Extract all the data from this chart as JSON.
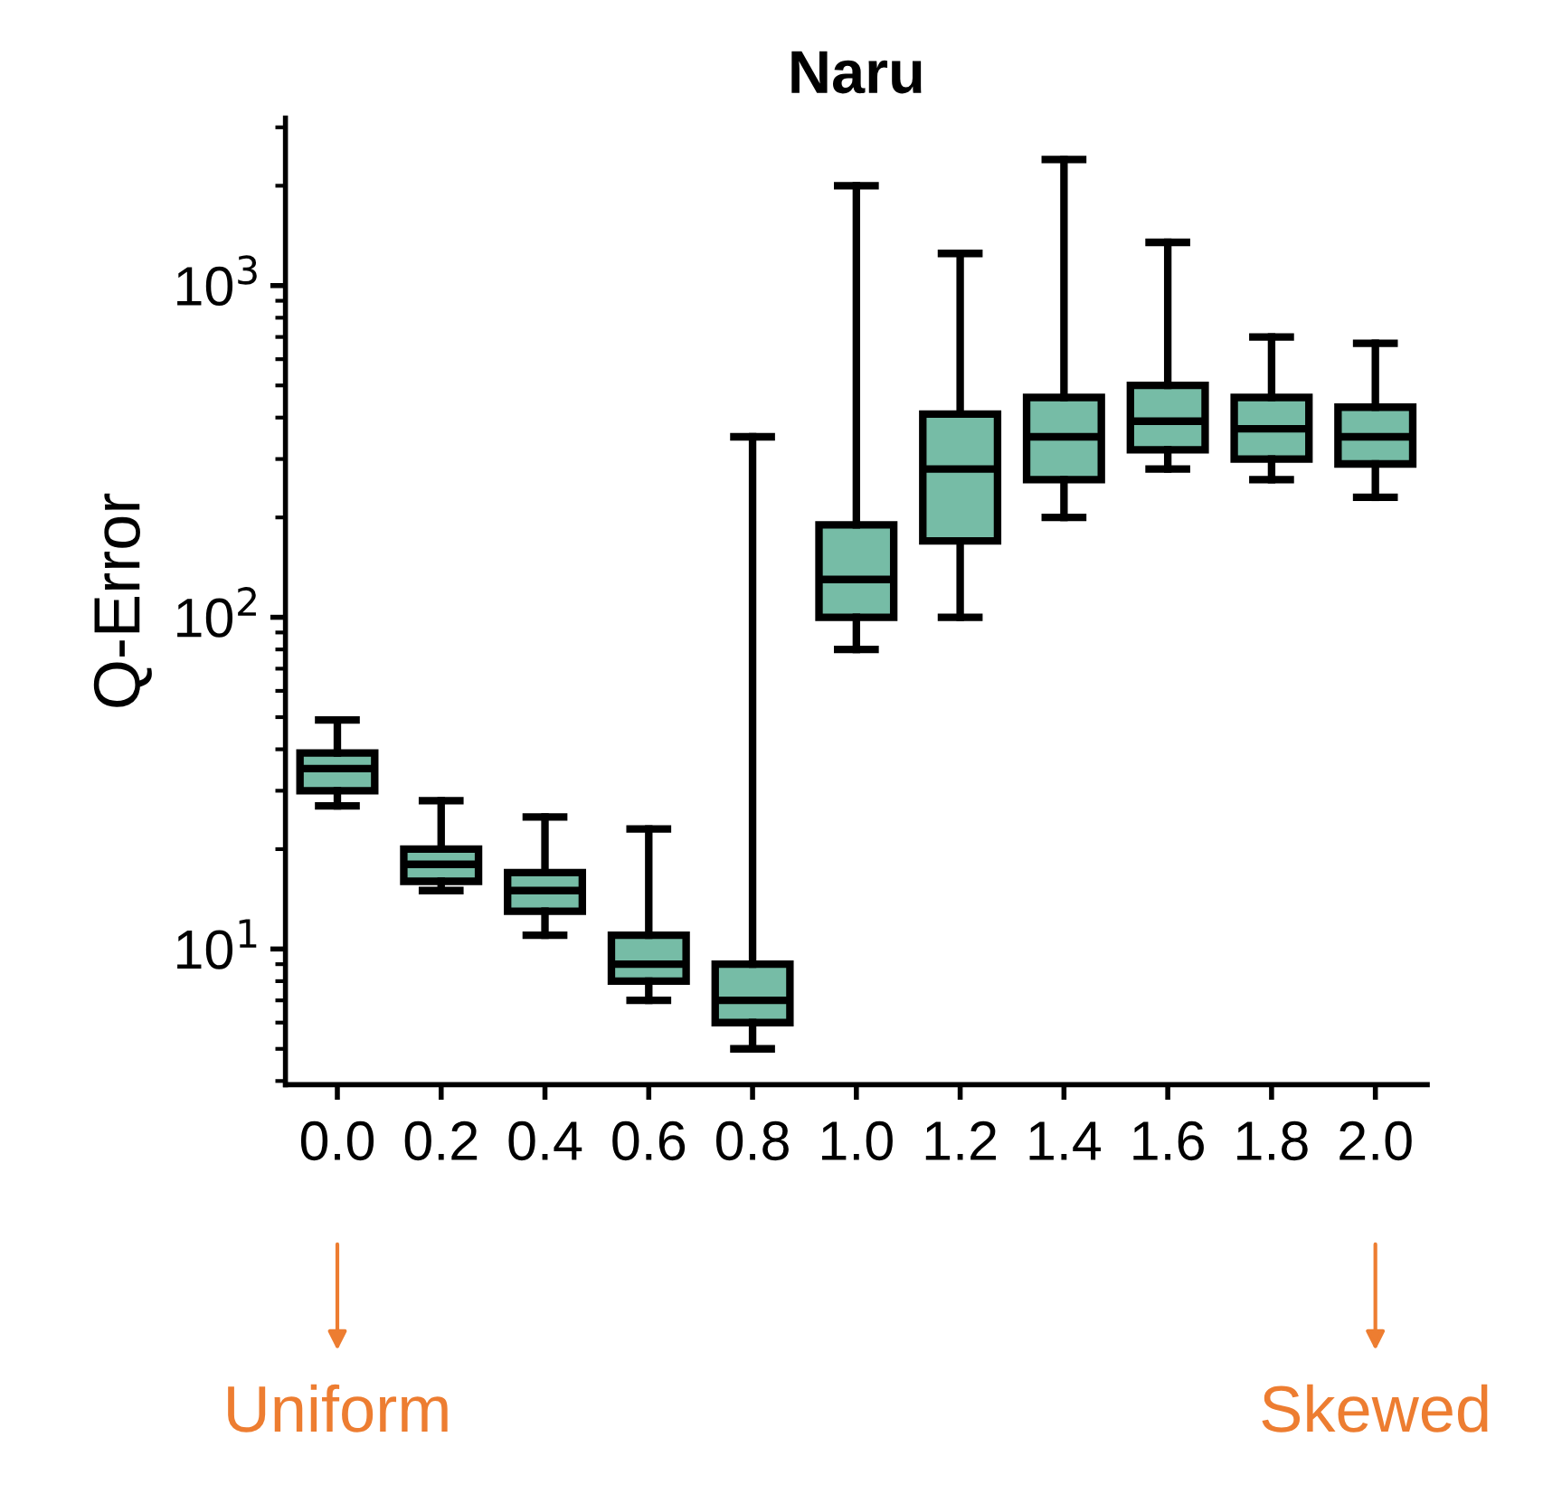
{
  "chart_data": {
    "type": "box",
    "title": "Naru",
    "ylabel": "Q-Error",
    "categories": [
      "0.0",
      "0.2",
      "0.4",
      "0.6",
      "0.8",
      "1.0",
      "1.2",
      "1.4",
      "1.6",
      "1.8",
      "2.0"
    ],
    "color": "#76bca6",
    "boxes": [
      {
        "low": 27,
        "q1": 30,
        "median": 35,
        "q3": 39,
        "high": 49
      },
      {
        "low": 15,
        "q1": 16,
        "median": 18,
        "q3": 20,
        "high": 28
      },
      {
        "low": 11,
        "q1": 13,
        "median": 15,
        "q3": 17,
        "high": 25
      },
      {
        "low": 7,
        "q1": 8,
        "median": 9,
        "q3": 11,
        "high": 23
      },
      {
        "low": 5,
        "q1": 6,
        "median": 7,
        "q3": 9,
        "high": 350
      },
      {
        "low": 80,
        "q1": 100,
        "median": 130,
        "q3": 190,
        "high": 2000
      },
      {
        "low": 100,
        "q1": 170,
        "median": 280,
        "q3": 410,
        "high": 1250
      },
      {
        "low": 200,
        "q1": 260,
        "median": 350,
        "q3": 460,
        "high": 2400
      },
      {
        "low": 280,
        "q1": 320,
        "median": 390,
        "q3": 500,
        "high": 1350
      },
      {
        "low": 260,
        "q1": 300,
        "median": 370,
        "q3": 460,
        "high": 700
      },
      {
        "low": 230,
        "q1": 290,
        "median": 350,
        "q3": 430,
        "high": 670
      }
    ],
    "log": true,
    "ylim": [
      3.9,
      3200
    ],
    "yticks": [
      {
        "value": 10,
        "label": "10$^{1}$"
      },
      {
        "value": 100,
        "label": "10$^{2}$"
      },
      {
        "value": 1000,
        "label": "10$^{3}$"
      }
    ],
    "grid": false,
    "legend": false,
    "annotations": [
      "Uniform",
      "Skewed"
    ]
  }
}
